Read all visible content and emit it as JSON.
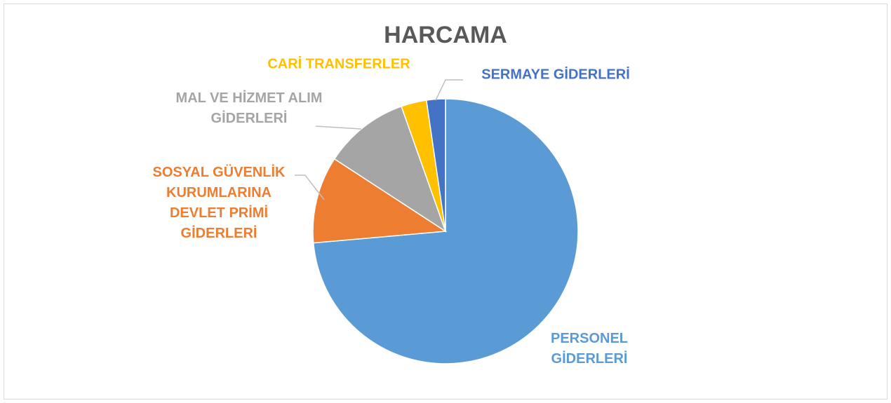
{
  "chart_data": {
    "type": "pie",
    "title": "HARCAMA",
    "categories": [
      "PERSONEL GİDERLERİ",
      "SOSYAL GÜVENLİK KURUMLARINA DEVLET PRİMİ GİDERLERİ",
      "MAL VE HİZMET ALIM GİDERLERİ",
      "CARİ TRANSFERLER",
      "SERMAYE GİDERLERİ"
    ],
    "values": [
      73.6,
      10.6,
      10.4,
      3.1,
      2.3
    ],
    "colors": [
      "#5b9bd5",
      "#ed7d31",
      "#a5a5a5",
      "#ffc000",
      "#4472c4"
    ]
  }
}
